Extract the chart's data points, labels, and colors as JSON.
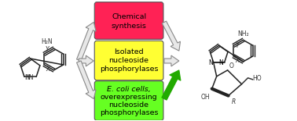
{
  "background_color": "#ffffff",
  "box1_color": "#ff2255",
  "box2_color": "#ffff33",
  "box3_color": "#66ff22",
  "box1_text_line1": "Chemical",
  "box1_text_line2": "synthesis",
  "box2_text_line1": "Isolated",
  "box2_text_line2": "nucleoside",
  "box2_text_line3": "phosphorylases",
  "box3_text_line1": "E. coli cells,",
  "box3_text_line2": "overexpressing",
  "box3_text_line3": "nucleoside",
  "box3_text_line4": "phosphorylases",
  "text_fontsize": 6.8,
  "arrow_fc": "#e8e8e8",
  "arrow_ec": "#888888",
  "green_arrow_color": "#22aa00",
  "line_color": "#333333"
}
